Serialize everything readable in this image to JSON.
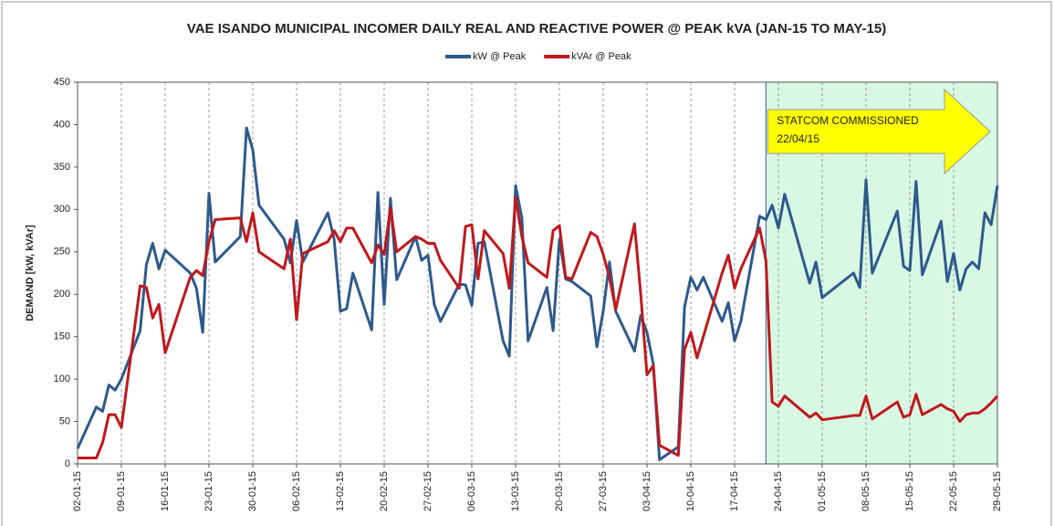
{
  "chart_data": {
    "type": "line",
    "title": "VAE ISANDO MUNICIPAL INCOMER DAILY REAL AND REACTIVE POWER @ PEAK kVA (JAN-15 TO MAY-15)",
    "y_label": "DEMAND [kW, kVAr]",
    "x": [
      "2015-01-02",
      "2015-01-05",
      "2015-01-06",
      "2015-01-07",
      "2015-01-08",
      "2015-01-09",
      "2015-01-12",
      "2015-01-13",
      "2015-01-14",
      "2015-01-15",
      "2015-01-16",
      "2015-01-20",
      "2015-01-21",
      "2015-01-22",
      "2015-01-23",
      "2015-01-24",
      "2015-01-28",
      "2015-01-29",
      "2015-01-30",
      "2015-01-31",
      "2015-02-04",
      "2015-02-05",
      "2015-02-06",
      "2015-02-07",
      "2015-02-11",
      "2015-02-12",
      "2015-02-13",
      "2015-02-14",
      "2015-02-15",
      "2015-02-18",
      "2015-02-19",
      "2015-02-20",
      "2015-02-21",
      "2015-02-22",
      "2015-02-25",
      "2015-02-26",
      "2015-02-27",
      "2015-02-28",
      "2015-03-01",
      "2015-03-04",
      "2015-03-05",
      "2015-03-06",
      "2015-03-07",
      "2015-03-08",
      "2015-03-11",
      "2015-03-12",
      "2015-03-13",
      "2015-03-14",
      "2015-03-15",
      "2015-03-18",
      "2015-03-19",
      "2015-03-20",
      "2015-03-21",
      "2015-03-22",
      "2015-03-25",
      "2015-03-26",
      "2015-03-27",
      "2015-03-28",
      "2015-03-29",
      "2015-04-01",
      "2015-04-02",
      "2015-04-03",
      "2015-04-04",
      "2015-04-05",
      "2015-04-08",
      "2015-04-09",
      "2015-04-10",
      "2015-04-11",
      "2015-04-12",
      "2015-04-15",
      "2015-04-16",
      "2015-04-17",
      "2015-04-18",
      "2015-04-21",
      "2015-04-22",
      "2015-04-23",
      "2015-04-24",
      "2015-04-25",
      "2015-04-29",
      "2015-04-30",
      "2015-05-01",
      "2015-05-06",
      "2015-05-07",
      "2015-05-08",
      "2015-05-09",
      "2015-05-13",
      "2015-05-14",
      "2015-05-15",
      "2015-05-16",
      "2015-05-17",
      "2015-05-20",
      "2015-05-21",
      "2015-05-22",
      "2015-05-23",
      "2015-05-24",
      "2015-05-25",
      "2015-05-26",
      "2015-05-27",
      "2015-05-28",
      "2015-05-29"
    ],
    "series": [
      {
        "name": "kW @ Peak",
        "color": "#2e5a8c",
        "values": [
          18,
          67,
          62,
          93,
          87,
          100,
          157,
          235,
          260,
          230,
          252,
          225,
          207,
          155,
          319,
          238,
          268,
          396,
          370,
          305,
          265,
          237,
          287,
          238,
          296,
          265,
          180,
          183,
          225,
          158,
          320,
          188,
          313,
          217,
          268,
          240,
          246,
          188,
          168,
          212,
          211,
          187,
          260,
          262,
          145,
          127,
          328,
          290,
          145,
          208,
          157,
          265,
          218,
          215,
          198,
          138,
          180,
          238,
          180,
          133,
          175,
          155,
          118,
          5,
          20,
          185,
          220,
          205,
          220,
          168,
          190,
          145,
          168,
          292,
          288,
          305,
          278,
          318,
          213,
          238,
          196,
          225,
          208,
          335,
          225,
          298,
          233,
          228,
          333,
          223,
          286,
          215,
          248,
          205,
          230,
          238,
          230,
          296,
          282,
          328
        ]
      },
      {
        "name": "kVAr @ Peak",
        "color": "#c0181c",
        "values": [
          7,
          7,
          25,
          58,
          58,
          43,
          210,
          208,
          172,
          188,
          131,
          220,
          228,
          222,
          262,
          288,
          290,
          262,
          296,
          250,
          230,
          265,
          170,
          248,
          262,
          275,
          262,
          278,
          278,
          237,
          258,
          247,
          302,
          250,
          268,
          265,
          260,
          260,
          240,
          207,
          280,
          282,
          218,
          275,
          248,
          207,
          315,
          268,
          237,
          220,
          275,
          281,
          220,
          218,
          273,
          268,
          247,
          220,
          182,
          283,
          200,
          105,
          116,
          22,
          10,
          135,
          155,
          125,
          150,
          225,
          246,
          207,
          230,
          278,
          240,
          73,
          68,
          80,
          55,
          60,
          52,
          57,
          57,
          80,
          53,
          73,
          55,
          58,
          82,
          58,
          70,
          65,
          62,
          50,
          58,
          60,
          60,
          65,
          72,
          80
        ]
      }
    ],
    "xlim": [
      "2015-01-02",
      "2015-05-29"
    ],
    "xticks": [
      {
        "value": "2015-01-02",
        "label": "02-01-15"
      },
      {
        "value": "2015-01-09",
        "label": "09-01-15"
      },
      {
        "value": "2015-01-16",
        "label": "16-01-15"
      },
      {
        "value": "2015-01-23",
        "label": "23-01-15"
      },
      {
        "value": "2015-01-30",
        "label": "30-01-15"
      },
      {
        "value": "2015-02-06",
        "label": "06-02-15"
      },
      {
        "value": "2015-02-13",
        "label": "13-02-15"
      },
      {
        "value": "2015-02-20",
        "label": "20-02-15"
      },
      {
        "value": "2015-02-27",
        "label": "27-02-15"
      },
      {
        "value": "2015-03-06",
        "label": "06-03-15"
      },
      {
        "value": "2015-03-13",
        "label": "13-03-15"
      },
      {
        "value": "2015-03-20",
        "label": "20-03-15"
      },
      {
        "value": "2015-03-27",
        "label": "27-03-15"
      },
      {
        "value": "2015-04-03",
        "label": "03-04-15"
      },
      {
        "value": "2015-04-10",
        "label": "10-04-15"
      },
      {
        "value": "2015-04-17",
        "label": "17-04-15"
      },
      {
        "value": "2015-04-24",
        "label": "24-04-15"
      },
      {
        "value": "2015-05-01",
        "label": "01-05-15"
      },
      {
        "value": "2015-05-08",
        "label": "08-05-15"
      },
      {
        "value": "2015-05-15",
        "label": "15-05-15"
      },
      {
        "value": "2015-05-22",
        "label": "22-05-15"
      },
      {
        "value": "2015-05-29",
        "label": "29-05-15"
      }
    ],
    "ylim": [
      0,
      450
    ],
    "yticks": [
      0,
      50,
      100,
      150,
      200,
      250,
      300,
      350,
      400,
      450
    ],
    "grid": true,
    "legend": "top",
    "shade": {
      "from": "2015-04-22",
      "color": "#d8f8e4"
    },
    "annotation": {
      "text": [
        "STATCOM COMMISSIONED",
        "22/04/15"
      ],
      "color": "#ffff00"
    }
  }
}
